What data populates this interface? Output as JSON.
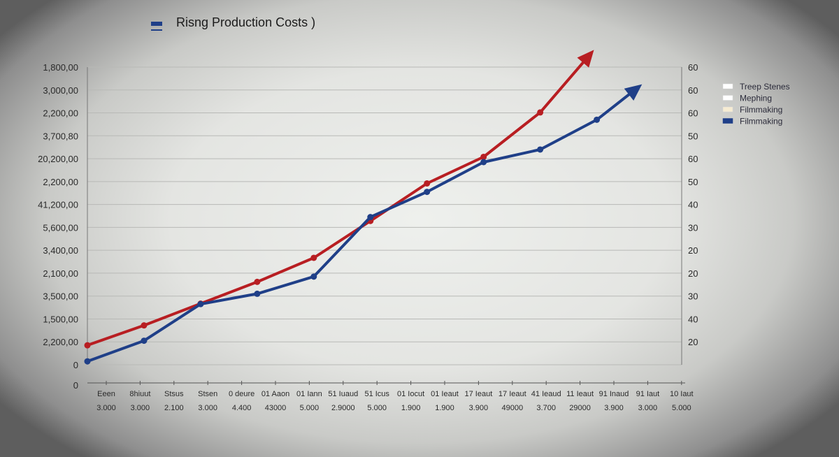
{
  "chart_data": {
    "type": "line",
    "title": "Risng Production Costs )",
    "left_axis_labels": [
      "1,800,00",
      "3,000,00",
      "2,200,00",
      "3,700,80",
      "20,200,00",
      "2,200,00",
      "41,200,00",
      "5,600,00",
      "3,400,00",
      "2,100,00",
      "3,500,00",
      "1,500,00",
      "2,200,00",
      "0"
    ],
    "right_axis_labels": [
      "60",
      "60",
      "60",
      "50",
      "60",
      "50",
      "40",
      "30",
      "20",
      "20",
      "30",
      "40",
      "20"
    ],
    "axis_zero_label": "0",
    "x_labels_row1": [
      "Eeen",
      "8hiuut",
      "Stsus",
      "Stsen",
      "0 deure",
      "01 Aaon",
      "01 Iann",
      "51 Iuaud",
      "51 Icus",
      "01 Iocut",
      "01 Ieaut",
      "17 Ieaut",
      "17 Ieaut",
      "41 Ieaud",
      "11 Ieaut",
      "91 Inaud",
      "91 Iaut",
      "10 Iaut"
    ],
    "x_labels_row2": [
      "3.000",
      "3.000",
      "2.100",
      "3.000",
      "4.400",
      "43000",
      "5.000",
      "2.9000",
      "5.000",
      "1.900",
      "1.900",
      "3.900",
      "49000",
      "3.700",
      "29000",
      "3.900",
      "3.000",
      "5.000"
    ],
    "y_range": [
      0,
      13
    ],
    "grid": true,
    "legend_position": "top-right",
    "legend": [
      {
        "label": "Treep Stenes",
        "color": "#ffffff"
      },
      {
        "label": "Mephing",
        "color": "#ffffff"
      },
      {
        "label": "Filmmaking",
        "color": "#f6ecd2"
      },
      {
        "label": "Filmmaking",
        "color": "#1f3f88"
      }
    ],
    "series": [
      {
        "color": "#b81e22",
        "points": [
          [
            0,
            0.85
          ],
          [
            1,
            1.72
          ],
          [
            2,
            2.67
          ],
          [
            3,
            3.62
          ],
          [
            4,
            4.67
          ],
          [
            5,
            6.28
          ],
          [
            6,
            7.92
          ],
          [
            7,
            9.08
          ],
          [
            8,
            11.02
          ]
        ],
        "arrow_tip": [
          8.95,
          13.75
        ]
      },
      {
        "color": "#1f3f88",
        "points": [
          [
            0,
            0.15
          ],
          [
            1,
            1.05
          ],
          [
            2,
            2.65
          ],
          [
            3,
            3.1
          ],
          [
            4,
            3.85
          ],
          [
            5,
            6.45
          ],
          [
            6,
            7.55
          ],
          [
            7,
            8.85
          ],
          [
            8,
            9.4
          ],
          [
            9,
            10.7
          ]
        ],
        "arrow_tip": [
          9.8,
          12.25
        ]
      }
    ],
    "x_range": [
      0,
      10.5
    ]
  },
  "legend_marker": {
    "color": "#1f3f88"
  }
}
